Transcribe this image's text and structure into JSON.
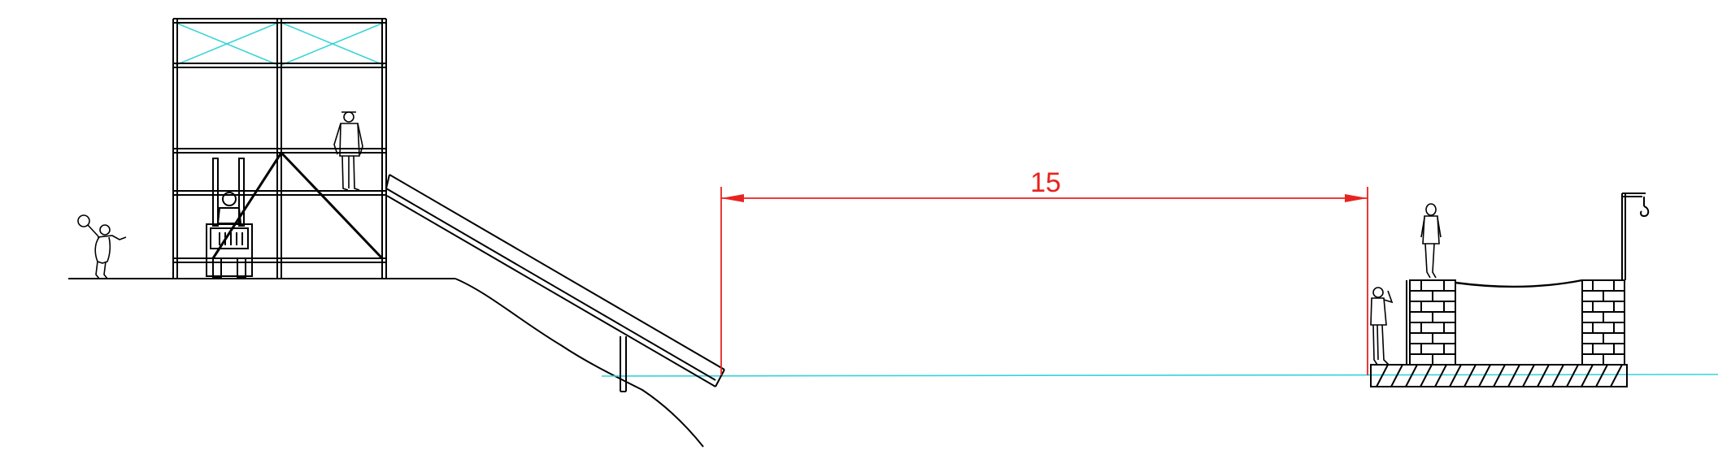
{
  "colors": {
    "ink": "#000000",
    "dimension": "#e8231f",
    "reference": "#35d4d8",
    "background": "#ffffff"
  },
  "dimension": {
    "value": "15"
  },
  "figures": [
    "child-figure",
    "worker-figure",
    "forklift",
    "person-on-wall",
    "person-beside-wall",
    "crane-hook-icon"
  ]
}
